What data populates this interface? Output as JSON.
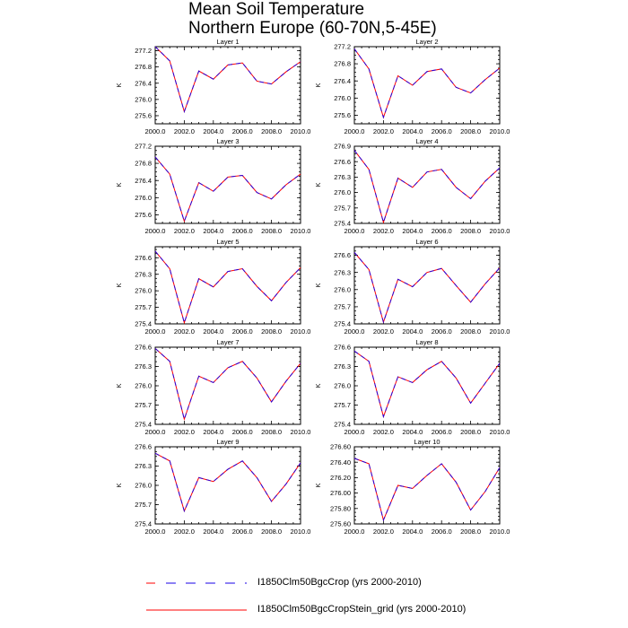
{
  "title": {
    "line1": "Mean Soil Temperature",
    "line2": "Northern Europe (60-70N,5-45E)"
  },
  "legend": {
    "position": "bottom",
    "entries": [
      {
        "label": "I1850Clm50BgcCrop (yrs 2000-2010)",
        "color": "#0000ff",
        "dash_color": "#ff0000",
        "style": "dashed"
      },
      {
        "label": "I1850Clm50BgcCropStein_grid (yrs 2000-2010)",
        "color": "#ff0000",
        "style": "solid"
      }
    ]
  },
  "chart_data": [
    {
      "type": "line",
      "title": "Layer 1",
      "ylabel": "K",
      "x": [
        2000,
        2001,
        2002,
        2003,
        2004,
        2005,
        2006,
        2007,
        2008,
        2009,
        2010
      ],
      "xlim": [
        2000,
        2010
      ],
      "xticks": [
        "2000.0",
        "2002.0",
        "2004.0",
        "2006.0",
        "2008.0",
        "2010.0"
      ],
      "ylim": [
        275.4,
        277.3
      ],
      "yticks": [
        "275.6",
        "276.0",
        "276.4",
        "276.8",
        "277.2"
      ],
      "series": [
        {
          "values": [
            277.3,
            276.95,
            275.7,
            276.7,
            276.5,
            276.85,
            276.9,
            276.45,
            276.38,
            276.68,
            276.93
          ]
        },
        {
          "values": [
            277.3,
            276.95,
            275.7,
            276.7,
            276.5,
            276.85,
            276.9,
            276.45,
            276.38,
            276.68,
            276.93
          ]
        }
      ]
    },
    {
      "type": "line",
      "title": "Layer 2",
      "ylabel": "K",
      "x": [
        2000,
        2001,
        2002,
        2003,
        2004,
        2005,
        2006,
        2007,
        2008,
        2009,
        2010
      ],
      "xlim": [
        2000,
        2010
      ],
      "xticks": [
        "2000.0",
        "2002.0",
        "2004.0",
        "2006.0",
        "2008.0",
        "2010.0"
      ],
      "ylim": [
        275.4,
        277.2
      ],
      "yticks": [
        "275.6",
        "276.0",
        "276.4",
        "276.8",
        "277.2"
      ],
      "series": [
        {
          "values": [
            277.15,
            276.68,
            275.55,
            276.52,
            276.3,
            276.62,
            276.68,
            276.25,
            276.12,
            276.43,
            276.7
          ]
        },
        {
          "values": [
            277.15,
            276.68,
            275.55,
            276.52,
            276.3,
            276.62,
            276.68,
            276.25,
            276.12,
            276.43,
            276.7
          ]
        }
      ]
    },
    {
      "type": "line",
      "title": "Layer 3",
      "ylabel": "K",
      "x": [
        2000,
        2001,
        2002,
        2003,
        2004,
        2005,
        2006,
        2007,
        2008,
        2009,
        2010
      ],
      "xlim": [
        2000,
        2010
      ],
      "xticks": [
        "2000.0",
        "2002.0",
        "2004.0",
        "2006.0",
        "2008.0",
        "2010.0"
      ],
      "ylim": [
        275.4,
        277.2
      ],
      "yticks": [
        "275.6",
        "276.0",
        "276.4",
        "276.8",
        "277.2"
      ],
      "series": [
        {
          "values": [
            276.95,
            276.55,
            275.45,
            276.35,
            276.15,
            276.48,
            276.52,
            276.12,
            275.97,
            276.3,
            276.55
          ]
        },
        {
          "values": [
            276.95,
            276.55,
            275.45,
            276.35,
            276.15,
            276.48,
            276.52,
            276.12,
            275.97,
            276.3,
            276.55
          ]
        }
      ]
    },
    {
      "type": "line",
      "title": "Layer 4",
      "ylabel": "K",
      "x": [
        2000,
        2001,
        2002,
        2003,
        2004,
        2005,
        2006,
        2007,
        2008,
        2009,
        2010
      ],
      "xlim": [
        2000,
        2010
      ],
      "xticks": [
        "2000.0",
        "2002.0",
        "2004.0",
        "2006.0",
        "2008.0",
        "2010.0"
      ],
      "ylim": [
        275.4,
        276.9
      ],
      "yticks": [
        "275.4",
        "275.7",
        "276.0",
        "276.3",
        "276.6",
        "276.9"
      ],
      "series": [
        {
          "values": [
            276.82,
            276.45,
            275.42,
            276.28,
            276.1,
            276.4,
            276.45,
            276.1,
            275.88,
            276.22,
            276.48
          ]
        },
        {
          "values": [
            276.82,
            276.45,
            275.42,
            276.28,
            276.1,
            276.4,
            276.45,
            276.1,
            275.88,
            276.22,
            276.48
          ]
        }
      ]
    },
    {
      "type": "line",
      "title": "Layer 5",
      "ylabel": "K",
      "x": [
        2000,
        2001,
        2002,
        2003,
        2004,
        2005,
        2006,
        2007,
        2008,
        2009,
        2010
      ],
      "xlim": [
        2000,
        2010
      ],
      "xticks": [
        "2000.0",
        "2002.0",
        "2004.0",
        "2006.0",
        "2008.0",
        "2010.0"
      ],
      "ylim": [
        275.4,
        276.8
      ],
      "yticks": [
        "275.4",
        "275.7",
        "276.0",
        "276.3",
        "276.6"
      ],
      "series": [
        {
          "values": [
            276.72,
            276.4,
            275.42,
            276.22,
            276.07,
            276.35,
            276.4,
            276.08,
            275.82,
            276.15,
            276.42
          ]
        },
        {
          "values": [
            276.72,
            276.4,
            275.42,
            276.22,
            276.07,
            276.35,
            276.4,
            276.08,
            275.82,
            276.15,
            276.42
          ]
        }
      ]
    },
    {
      "type": "line",
      "title": "Layer 6",
      "ylabel": "K",
      "x": [
        2000,
        2001,
        2002,
        2003,
        2004,
        2005,
        2006,
        2007,
        2008,
        2009,
        2010
      ],
      "xlim": [
        2000,
        2010
      ],
      "xticks": [
        "2000.0",
        "2002.0",
        "2004.0",
        "2006.0",
        "2008.0",
        "2010.0"
      ],
      "ylim": [
        275.4,
        276.75
      ],
      "yticks": [
        "275.4",
        "275.7",
        "276.0",
        "276.3",
        "276.6"
      ],
      "series": [
        {
          "values": [
            276.65,
            276.35,
            275.43,
            276.18,
            276.05,
            276.3,
            276.37,
            276.07,
            275.78,
            276.1,
            276.38
          ]
        },
        {
          "values": [
            276.65,
            276.35,
            275.43,
            276.18,
            276.05,
            276.3,
            276.37,
            276.07,
            275.78,
            276.1,
            276.38
          ]
        }
      ]
    },
    {
      "type": "line",
      "title": "Layer 7",
      "ylabel": "K",
      "x": [
        2000,
        2001,
        2002,
        2003,
        2004,
        2005,
        2006,
        2007,
        2008,
        2009,
        2010
      ],
      "xlim": [
        2000,
        2010
      ],
      "xticks": [
        "2000.0",
        "2002.0",
        "2004.0",
        "2006.0",
        "2008.0",
        "2010.0"
      ],
      "ylim": [
        275.4,
        276.6
      ],
      "yticks": [
        "275.4",
        "275.7",
        "276.0",
        "276.3",
        "276.6"
      ],
      "series": [
        {
          "values": [
            276.58,
            276.38,
            275.48,
            276.15,
            276.05,
            276.28,
            276.38,
            276.12,
            275.75,
            276.07,
            276.35
          ]
        },
        {
          "values": [
            276.58,
            276.38,
            275.48,
            276.15,
            276.05,
            276.28,
            276.38,
            276.12,
            275.75,
            276.07,
            276.35
          ]
        }
      ]
    },
    {
      "type": "line",
      "title": "Layer 8",
      "ylabel": "K",
      "x": [
        2000,
        2001,
        2002,
        2003,
        2004,
        2005,
        2006,
        2007,
        2008,
        2009,
        2010
      ],
      "xlim": [
        2000,
        2010
      ],
      "xticks": [
        "2000.0",
        "2002.0",
        "2004.0",
        "2006.0",
        "2008.0",
        "2010.0"
      ],
      "ylim": [
        275.4,
        276.6
      ],
      "yticks": [
        "275.4",
        "275.7",
        "276.0",
        "276.3",
        "276.6"
      ],
      "series": [
        {
          "values": [
            276.54,
            276.38,
            275.52,
            276.14,
            276.05,
            276.25,
            276.38,
            276.12,
            275.73,
            276.04,
            276.35
          ]
        },
        {
          "values": [
            276.54,
            276.38,
            275.52,
            276.14,
            276.05,
            276.25,
            276.38,
            276.12,
            275.73,
            276.04,
            276.35
          ]
        }
      ]
    },
    {
      "type": "line",
      "title": "Layer 9",
      "ylabel": "K",
      "x": [
        2000,
        2001,
        2002,
        2003,
        2004,
        2005,
        2006,
        2007,
        2008,
        2009,
        2010
      ],
      "xlim": [
        2000,
        2010
      ],
      "xticks": [
        "2000.0",
        "2002.0",
        "2004.0",
        "2006.0",
        "2008.0",
        "2010.0"
      ],
      "ylim": [
        275.4,
        276.6
      ],
      "yticks": [
        "275.4",
        "275.7",
        "276.0",
        "276.3",
        "276.6"
      ],
      "series": [
        {
          "values": [
            276.5,
            276.38,
            275.6,
            276.12,
            276.06,
            276.25,
            276.38,
            276.12,
            275.75,
            276.02,
            276.35
          ]
        },
        {
          "values": [
            276.5,
            276.38,
            275.6,
            276.12,
            276.06,
            276.25,
            276.38,
            276.12,
            275.75,
            276.02,
            276.35
          ]
        }
      ]
    },
    {
      "type": "line",
      "title": "Layer 10",
      "ylabel": "K",
      "x": [
        2000,
        2001,
        2002,
        2003,
        2004,
        2005,
        2006,
        2007,
        2008,
        2009,
        2010
      ],
      "xlim": [
        2000,
        2010
      ],
      "xticks": [
        "2000.0",
        "2002.0",
        "2004.0",
        "2006.0",
        "2008.0",
        "2010.0"
      ],
      "ylim": [
        275.6,
        276.6
      ],
      "yticks": [
        "275.60",
        "275.80",
        "276.00",
        "276.20",
        "276.40",
        "276.60"
      ],
      "series": [
        {
          "values": [
            276.45,
            276.38,
            275.65,
            276.1,
            276.06,
            276.23,
            276.38,
            276.14,
            275.78,
            276.02,
            276.33
          ]
        },
        {
          "values": [
            276.45,
            276.38,
            275.65,
            276.1,
            276.06,
            276.23,
            276.38,
            276.14,
            275.78,
            276.02,
            276.33
          ]
        }
      ]
    }
  ]
}
